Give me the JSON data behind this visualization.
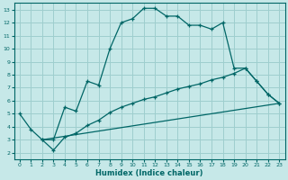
{
  "title": "",
  "xlabel": "Humidex (Indice chaleur)",
  "xlim": [
    -0.5,
    23.5
  ],
  "ylim": [
    1.5,
    13.5
  ],
  "xticks": [
    0,
    1,
    2,
    3,
    4,
    5,
    6,
    7,
    8,
    9,
    10,
    11,
    12,
    13,
    14,
    15,
    16,
    17,
    18,
    19,
    20,
    21,
    22,
    23
  ],
  "yticks": [
    2,
    3,
    4,
    5,
    6,
    7,
    8,
    9,
    10,
    11,
    12,
    13
  ],
  "bg_color": "#c6e8e8",
  "grid_color": "#9ecece",
  "line_color": "#006666",
  "line1_x": [
    0,
    1,
    2,
    3,
    4,
    5,
    6,
    7,
    8,
    9,
    10,
    11,
    12,
    13,
    14,
    15,
    16,
    17,
    18,
    19,
    20,
    21,
    22,
    23
  ],
  "line1_y": [
    5.0,
    3.8,
    3.0,
    3.0,
    5.5,
    5.2,
    7.5,
    7.2,
    10.0,
    12.0,
    12.3,
    13.1,
    13.1,
    12.5,
    12.5,
    11.8,
    11.8,
    11.5,
    12.0,
    8.5,
    8.5,
    7.5,
    6.5,
    5.8
  ],
  "line2_x": [
    2,
    3,
    4,
    5,
    6,
    7,
    8,
    9,
    10,
    11,
    12,
    13,
    14,
    15,
    16,
    17,
    18,
    19,
    20,
    21,
    22,
    23
  ],
  "line2_y": [
    3.0,
    2.2,
    3.2,
    3.5,
    4.1,
    4.5,
    5.1,
    5.5,
    5.8,
    6.1,
    6.3,
    6.6,
    6.9,
    7.1,
    7.3,
    7.6,
    7.8,
    8.1,
    8.5,
    7.5,
    6.5,
    5.8
  ],
  "line3_x": [
    2,
    23
  ],
  "line3_y": [
    3.0,
    5.8
  ]
}
